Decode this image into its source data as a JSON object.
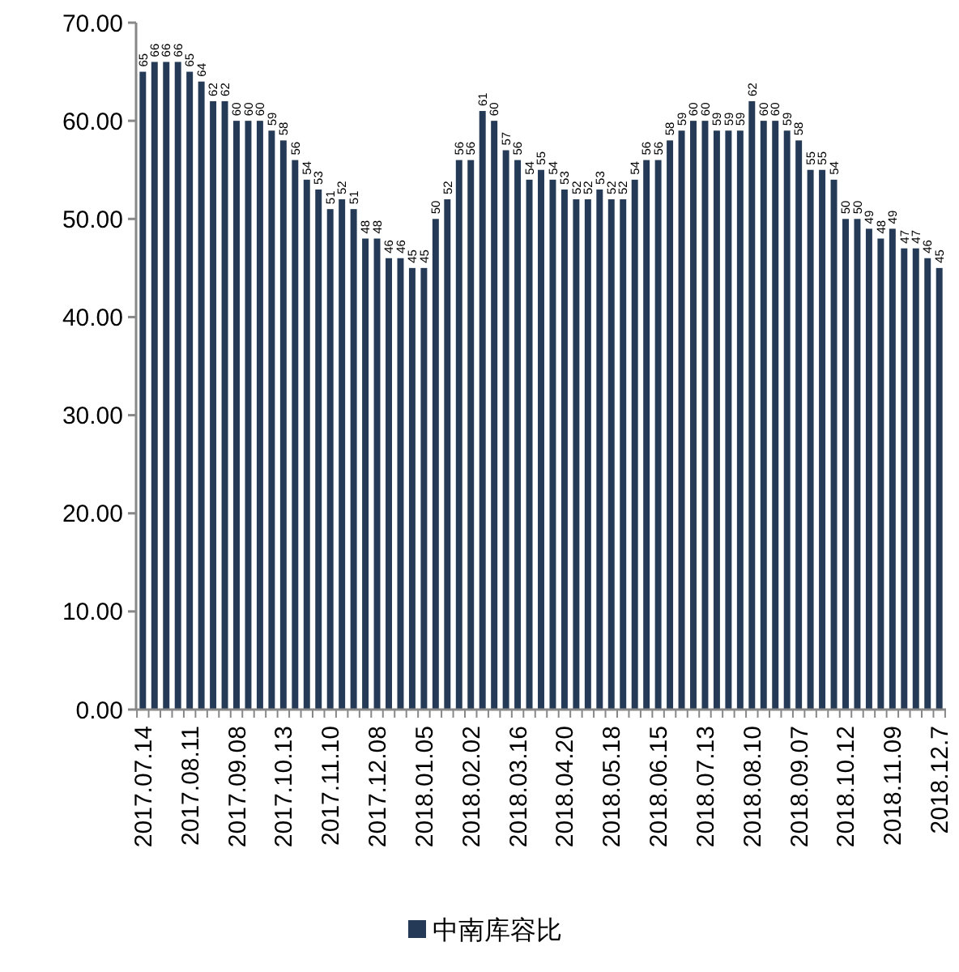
{
  "chart_data": {
    "type": "bar",
    "categories": [
      "2017.07.14",
      null,
      null,
      null,
      "2017.08.11",
      null,
      null,
      null,
      "2017.09.08",
      null,
      null,
      null,
      "2017.10.13",
      null,
      null,
      null,
      "2017.11.10",
      null,
      null,
      null,
      "2017.12.08",
      null,
      null,
      null,
      "2018.01.05",
      null,
      null,
      null,
      "2018.02.02",
      null,
      null,
      null,
      "2018.03.16",
      null,
      null,
      null,
      "2018.04.20",
      null,
      null,
      null,
      "2018.05.18",
      null,
      null,
      null,
      "2018.06.15",
      null,
      null,
      null,
      "2018.07.13",
      null,
      null,
      null,
      "2018.08.10",
      null,
      null,
      null,
      "2018.09.07",
      null,
      null,
      null,
      "2018.10.12",
      null,
      null,
      null,
      "2018.11.09",
      null,
      null,
      null,
      "2018.12.7"
    ],
    "series": [
      {
        "name": "中南库容比",
        "color": "#243a56",
        "values": [
          65,
          66,
          66,
          66,
          65,
          64,
          62,
          62,
          60,
          60,
          60,
          59,
          58,
          56,
          54,
          53,
          51,
          52,
          51,
          48,
          48,
          46,
          46,
          45,
          45,
          50,
          52,
          56,
          56,
          61,
          60,
          57,
          56,
          54,
          55,
          54,
          53,
          52,
          52,
          53,
          52,
          52,
          54,
          56,
          56,
          58,
          59,
          60,
          60,
          59,
          59,
          59,
          62,
          60,
          60,
          59,
          58,
          55,
          55,
          54,
          50,
          50,
          49,
          48,
          49,
          47,
          47,
          46,
          45
        ]
      }
    ],
    "ylim": [
      0,
      70
    ],
    "yticks": [
      {
        "value": 0,
        "label": "0.00"
      },
      {
        "value": 10,
        "label": "10.00"
      },
      {
        "value": 20,
        "label": "20.00"
      },
      {
        "value": 30,
        "label": "30.00"
      },
      {
        "value": 40,
        "label": "40.00"
      },
      {
        "value": 50,
        "label": "50.00"
      },
      {
        "value": 60,
        "label": "60.00"
      },
      {
        "value": 70,
        "label": "70.00"
      }
    ],
    "data_labels": true,
    "grid": false,
    "legend": "bottom"
  }
}
